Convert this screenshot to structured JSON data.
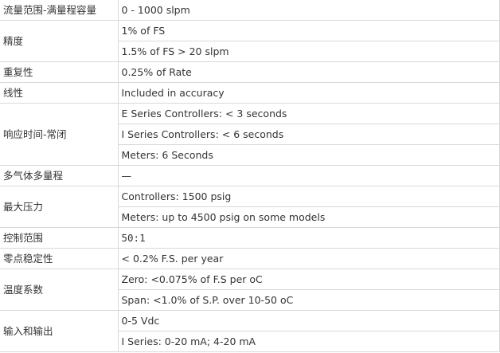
{
  "specs": [
    {
      "label": "流量范围-满量程容量",
      "values": [
        "0 - 1000 slpm"
      ]
    },
    {
      "label": "精度",
      "values": [
        "1% of FS",
        "1.5% of FS > 20 slpm"
      ]
    },
    {
      "label": "重复性",
      "values": [
        "0.25% of Rate"
      ]
    },
    {
      "label": "线性",
      "values": [
        "Included in accuracy"
      ]
    },
    {
      "label": "响应时间-常闭",
      "values": [
        "E Series Controllers: < 3 seconds",
        "I Series Controllers: < 6 seconds",
        "Meters: 6 Seconds"
      ]
    },
    {
      "label": "多气体多量程",
      "values": [
        "—"
      ]
    },
    {
      "label": "最大压力",
      "values": [
        "Controllers: 1500 psig",
        "Meters: up to 4500 psig on some models"
      ]
    },
    {
      "label": "控制范围",
      "values": [
        "50:1"
      ],
      "mono": true
    },
    {
      "label": "零点稳定性",
      "values": [
        "< 0.2% F.S. per year"
      ]
    },
    {
      "label": "温度系数",
      "values": [
        "Zero: <0.075% of F.S per oC",
        "Span: <1.0% of S.P. over 10-50 oC"
      ]
    },
    {
      "label": "输入和输出",
      "values": [
        "0-5 Vdc",
        "I Series: 0-20 mA; 4-20 mA"
      ]
    }
  ]
}
